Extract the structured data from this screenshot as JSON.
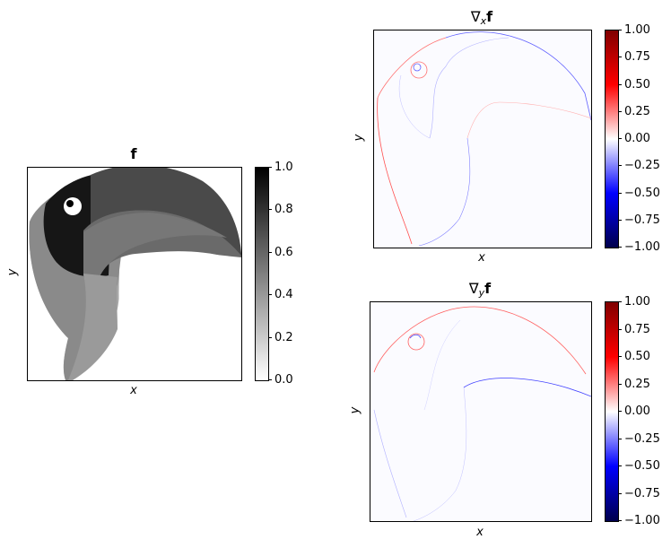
{
  "chart_data": [
    {
      "type": "heatmap",
      "title": "f",
      "xlabel": "x",
      "ylabel": "y",
      "colormap": "gray_r",
      "clim": [
        0.0,
        1.0
      ],
      "colorbar_ticks": [
        "0.0",
        "0.2",
        "0.4",
        "0.6",
        "0.8",
        "1.0"
      ],
      "colorbar_tick_values": [
        0.0,
        0.2,
        0.4,
        0.6,
        0.8,
        1.0
      ]
    },
    {
      "type": "heatmap",
      "title_symbol": "∇",
      "title_sub": "x",
      "title_bold": "f",
      "xlabel": "x",
      "ylabel": "y",
      "colormap": "seismic",
      "clim": [
        -1.0,
        1.0
      ],
      "colorbar_ticks": [
        "1.00",
        "0.75",
        "0.50",
        "0.25",
        "0.00",
        "−0.25",
        "−0.50",
        "−0.75",
        "−1.00"
      ],
      "colorbar_tick_values": [
        1.0,
        0.75,
        0.5,
        0.25,
        0.0,
        -0.25,
        -0.5,
        -0.75,
        -1.0
      ]
    },
    {
      "type": "heatmap",
      "title_symbol": "∇",
      "title_sub": "y",
      "title_bold": "f",
      "xlabel": "x",
      "ylabel": "y",
      "colormap": "seismic",
      "clim": [
        -1.0,
        1.0
      ],
      "colorbar_ticks": [
        "1.00",
        "0.75",
        "0.50",
        "0.25",
        "0.00",
        "−0.25",
        "−0.50",
        "−0.75",
        "−1.00"
      ],
      "colorbar_tick_values": [
        1.0,
        0.75,
        0.5,
        0.25,
        0.0,
        -0.25,
        -0.5,
        -0.75,
        -1.0
      ]
    }
  ],
  "colors": {
    "seismic_red": "#ff0000",
    "seismic_blue": "#0000ff",
    "gray_dark": "#000000",
    "gray_light": "#ffffff"
  }
}
